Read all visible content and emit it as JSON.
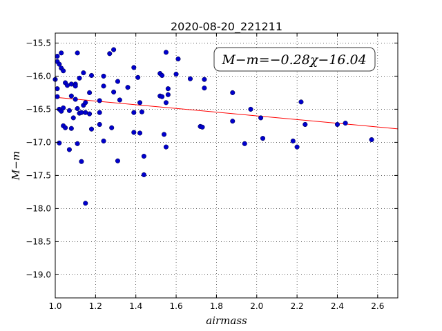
{
  "chart_data": {
    "type": "scatter",
    "title": "2020-08-20_221211",
    "xlabel": "airmass",
    "ylabel": "M−m",
    "xlim": [
      1.0,
      2.7
    ],
    "ylim": [
      -19.35,
      -15.35
    ],
    "y_inverted": true,
    "grid": true,
    "x_ticks": [
      "1.0",
      "1.2",
      "1.4",
      "1.6",
      "1.8",
      "2.0",
      "2.2",
      "2.4",
      "2.6"
    ],
    "y_ticks": [
      "−15.5",
      "−16.0",
      "−16.5",
      "−17.0",
      "−17.5",
      "−18.0",
      "−18.5",
      "−19.0"
    ],
    "annotation": "M−m=−0.28χ−16.04",
    "point_color": "#0000cc",
    "line_color": "#ff0000",
    "fit": {
      "slope": -0.28,
      "intercept": -16.04
    },
    "points": [
      [
        1.0,
        -16.05
      ],
      [
        1.01,
        -15.7
      ],
      [
        1.01,
        -15.78
      ],
      [
        1.02,
        -15.82
      ],
      [
        1.01,
        -16.19
      ],
      [
        1.01,
        -16.31
      ],
      [
        1.02,
        -16.5
      ],
      [
        1.03,
        -16.53
      ],
      [
        1.04,
        -16.48
      ],
      [
        1.02,
        -17.01
      ],
      [
        1.03,
        -15.65
      ],
      [
        1.03,
        -15.88
      ],
      [
        1.04,
        -15.92
      ],
      [
        1.04,
        -16.75
      ],
      [
        1.05,
        -16.78
      ],
      [
        1.05,
        -16.1
      ],
      [
        1.06,
        -16.14
      ],
      [
        1.07,
        -17.11
      ],
      [
        1.07,
        -16.52
      ],
      [
        1.08,
        -16.79
      ],
      [
        1.08,
        -16.12
      ],
      [
        1.08,
        -16.3
      ],
      [
        1.09,
        -16.63
      ],
      [
        1.1,
        -16.35
      ],
      [
        1.1,
        -16.12
      ],
      [
        1.1,
        -16.15
      ],
      [
        1.11,
        -15.65
      ],
      [
        1.11,
        -16.49
      ],
      [
        1.12,
        -16.03
      ],
      [
        1.11,
        -17.02
      ],
      [
        1.12,
        -16.56
      ],
      [
        1.13,
        -16.55
      ],
      [
        1.13,
        -17.29
      ],
      [
        1.14,
        -15.95
      ],
      [
        1.14,
        -16.44
      ],
      [
        1.15,
        -16.4
      ],
      [
        1.15,
        -16.55
      ],
      [
        1.15,
        -17.92
      ],
      [
        1.17,
        -16.25
      ],
      [
        1.17,
        -16.57
      ],
      [
        1.18,
        -16.8
      ],
      [
        1.18,
        -15.99
      ],
      [
        1.22,
        -16.37
      ],
      [
        1.22,
        -16.55
      ],
      [
        1.22,
        -16.73
      ],
      [
        1.24,
        -16.0
      ],
      [
        1.24,
        -16.15
      ],
      [
        1.24,
        -16.98
      ],
      [
        1.27,
        -15.66
      ],
      [
        1.28,
        -16.78
      ],
      [
        1.29,
        -16.24
      ],
      [
        1.29,
        -15.6
      ],
      [
        1.31,
        -16.08
      ],
      [
        1.31,
        -17.28
      ],
      [
        1.32,
        -16.36
      ],
      [
        1.36,
        -16.17
      ],
      [
        1.39,
        -15.87
      ],
      [
        1.39,
        -16.85
      ],
      [
        1.39,
        -16.55
      ],
      [
        1.41,
        -16.02
      ],
      [
        1.42,
        -16.4
      ],
      [
        1.42,
        -16.86
      ],
      [
        1.43,
        -16.54
      ],
      [
        1.44,
        -17.21
      ],
      [
        1.44,
        -17.49
      ],
      [
        1.52,
        -15.96
      ],
      [
        1.52,
        -16.3
      ],
      [
        1.53,
        -15.99
      ],
      [
        1.53,
        -16.31
      ],
      [
        1.54,
        -16.88
      ],
      [
        1.55,
        -15.64
      ],
      [
        1.55,
        -16.4
      ],
      [
        1.55,
        -17.07
      ],
      [
        1.56,
        -16.19
      ],
      [
        1.56,
        -16.28
      ],
      [
        1.6,
        -15.97
      ],
      [
        1.61,
        -15.74
      ],
      [
        1.67,
        -16.04
      ],
      [
        1.72,
        -16.76
      ],
      [
        1.73,
        -16.77
      ],
      [
        1.74,
        -16.05
      ],
      [
        1.74,
        -16.18
      ],
      [
        1.88,
        -16.25
      ],
      [
        1.88,
        -16.68
      ],
      [
        1.94,
        -17.02
      ],
      [
        1.97,
        -16.5
      ],
      [
        2.02,
        -16.63
      ],
      [
        2.03,
        -16.94
      ],
      [
        2.18,
        -16.98
      ],
      [
        2.2,
        -17.07
      ],
      [
        2.22,
        -16.39
      ],
      [
        2.24,
        -16.73
      ],
      [
        2.4,
        -16.73
      ],
      [
        2.44,
        -16.71
      ],
      [
        2.57,
        -16.96
      ]
    ]
  }
}
